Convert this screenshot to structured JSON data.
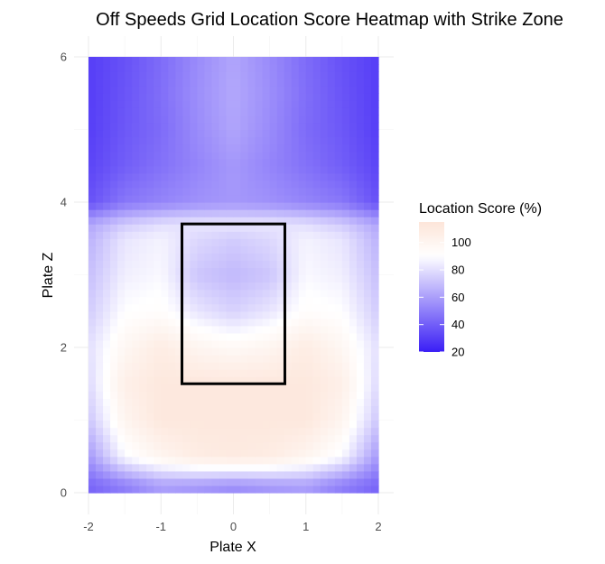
{
  "chart_data": {
    "type": "heatmap",
    "title": "Off Speeds Grid Location Score Heatmap with Strike Zone",
    "xlabel": "Plate X",
    "ylabel": "Plate Z",
    "xlim": [
      -2,
      2
    ],
    "ylim": [
      0,
      6
    ],
    "x_ticks": [
      -2,
      -1,
      0,
      1,
      2
    ],
    "y_ticks": [
      0,
      2,
      4,
      6
    ],
    "grid": true,
    "legend": {
      "title": "Location Score (%)",
      "position": "right",
      "ticks": [
        20,
        40,
        60,
        80,
        100
      ],
      "range": [
        20,
        115
      ],
      "colors": {
        "low": "#3a1ef5",
        "mid": "#ffffff",
        "high": "#fde5d9",
        "midpoint_value": 90
      }
    },
    "strike_zone": {
      "x": [
        -0.71,
        0.71
      ],
      "z": [
        1.5,
        3.7
      ],
      "color": "#000000"
    },
    "grid_x_values": [
      -2.0,
      -1.5,
      -1.0,
      -0.5,
      0.0,
      0.5,
      1.0,
      1.5,
      2.0
    ],
    "grid_z_values": [
      0.1,
      0.5,
      1.0,
      1.5,
      2.0,
      2.5,
      3.0,
      3.5,
      3.7,
      4.0,
      4.5,
      5.0,
      5.5,
      6.0
    ],
    "scores": [
      [
        42,
        50,
        60,
        58,
        55,
        58,
        60,
        50,
        42
      ],
      [
        58,
        88,
        100,
        108,
        110,
        108,
        100,
        88,
        58
      ],
      [
        72,
        100,
        112,
        112,
        112,
        112,
        112,
        100,
        72
      ],
      [
        78,
        105,
        112,
        112,
        112,
        112,
        112,
        105,
        78
      ],
      [
        80,
        98,
        108,
        100,
        96,
        100,
        108,
        98,
        80
      ],
      [
        74,
        90,
        92,
        82,
        76,
        82,
        92,
        90,
        74
      ],
      [
        70,
        85,
        88,
        72,
        68,
        72,
        88,
        85,
        70
      ],
      [
        66,
        82,
        86,
        78,
        74,
        78,
        86,
        82,
        66
      ],
      [
        62,
        74,
        80,
        82,
        82,
        82,
        80,
        74,
        62
      ],
      [
        36,
        48,
        52,
        56,
        58,
        56,
        52,
        48,
        36
      ],
      [
        32,
        40,
        46,
        52,
        58,
        52,
        46,
        40,
        32
      ],
      [
        30,
        38,
        44,
        54,
        62,
        54,
        44,
        38,
        30
      ],
      [
        30,
        37,
        45,
        55,
        63,
        55,
        45,
        37,
        30
      ],
      [
        30,
        36,
        44,
        54,
        62,
        54,
        44,
        36,
        30
      ]
    ]
  }
}
